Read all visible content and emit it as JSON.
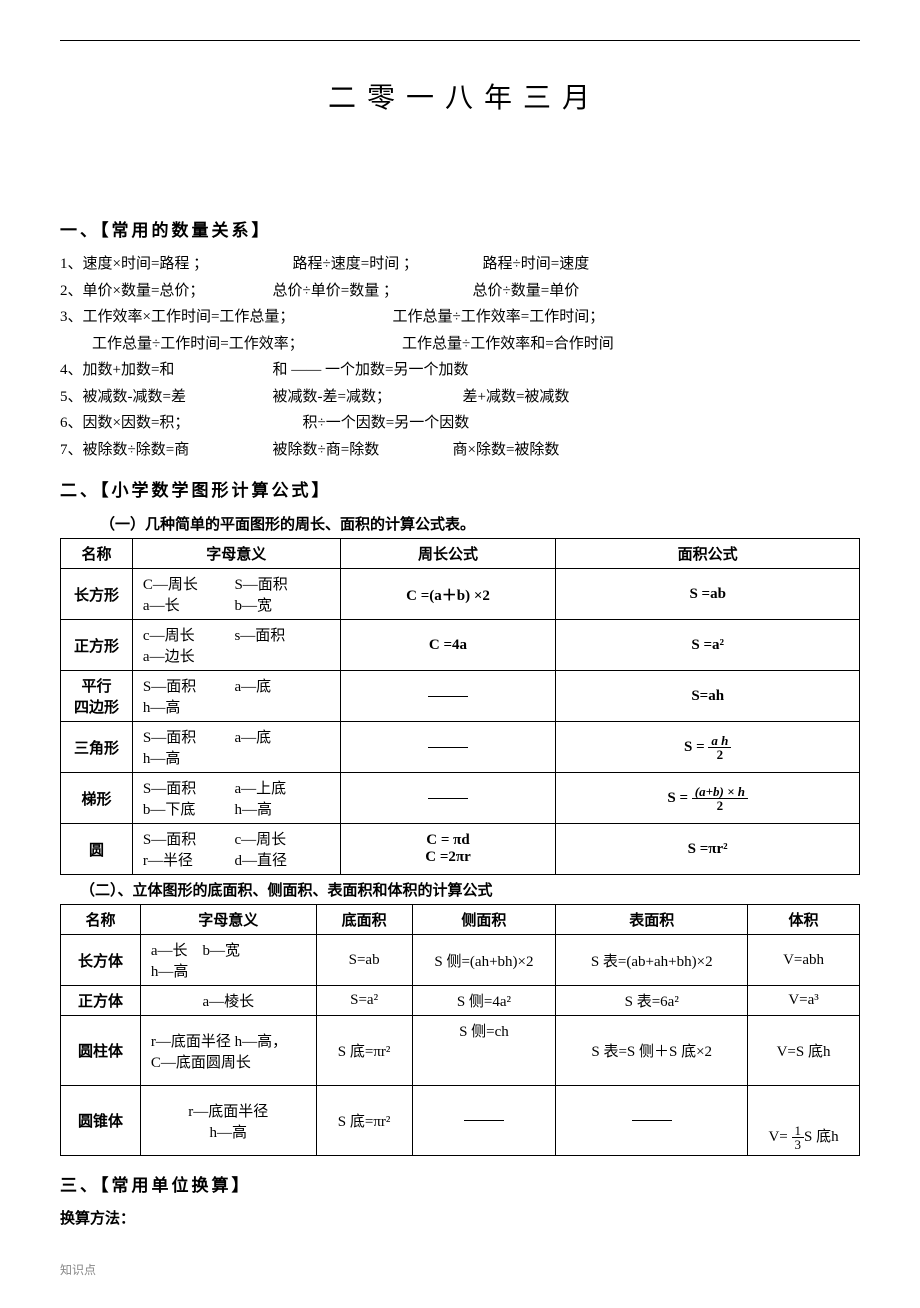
{
  "main_title": "二 零 一 八 年 三 月",
  "section1": {
    "title": "一、【常用的数量关系】",
    "lines": [
      {
        "num": "1、",
        "parts": [
          "速度×时间=路程 ；",
          "路程÷速度=时间 ；",
          "路程÷时间=速度"
        ]
      },
      {
        "num": "2、",
        "parts": [
          "单价×数量=总价；",
          "总价÷单价=数量 ；",
          "总价÷数量=单价"
        ]
      },
      {
        "num": "3、",
        "parts": [
          "工作效率×工作时间=工作总量；",
          "工作总量÷工作效率=工作时间；"
        ]
      },
      {
        "num": "",
        "parts": [
          "工作总量÷工作时间=工作效率；",
          "工作总量÷工作效率和=合作时间"
        ]
      },
      {
        "num": "4、",
        "parts": [
          "加数+加数=和",
          "和 —— 一个加数=另一个加数"
        ]
      },
      {
        "num": "5、",
        "parts": [
          "被减数-减数=差",
          "被减数-差=减数；",
          "差+减数=被减数"
        ]
      },
      {
        "num": "6、",
        "parts": [
          "因数×因数=积；",
          "积÷一个因数=另一个因数"
        ]
      },
      {
        "num": "7、",
        "parts": [
          "被除数÷除数=商",
          "被除数÷商=除数",
          "商×除数=被除数"
        ]
      }
    ]
  },
  "section2": {
    "title": "二、【小学数学图形计算公式】",
    "sub1_title": "（一）几种简单的平面图形的周长、面积的计算公式表。",
    "sub2_title": "（二）、立体图形的底面积、侧面积、表面积和体积的计算公式",
    "table1": {
      "headers": [
        "名称",
        "字母意义",
        "周长公式",
        "面积公式"
      ],
      "rows": [
        {
          "name": "长方形",
          "meaning": [
            [
              "C—周长",
              "S—面积"
            ],
            [
              "a—长",
              "b—宽"
            ]
          ],
          "perimeter": "C =(a＋b) ×2",
          "area": "S  =ab"
        },
        {
          "name": "正方形",
          "meaning": [
            [
              "c—周长",
              "s—面积"
            ],
            [
              "a—边长",
              ""
            ]
          ],
          "perimeter": "C =4a",
          "area": "S  =a²"
        },
        {
          "name": "平行\n四边形",
          "meaning": [
            [
              "S—面积",
              "a—底"
            ],
            [
              "h—高",
              ""
            ]
          ],
          "perimeter": "——",
          "area": "S=ah"
        },
        {
          "name": "三角形",
          "meaning": [
            [
              "S—面积",
              "a—底"
            ],
            [
              "h—高",
              ""
            ]
          ],
          "perimeter": "——",
          "area_frac": {
            "pre": "S  = ",
            "num": "a h",
            "den": "2"
          }
        },
        {
          "name": "梯形",
          "meaning": [
            [
              "S—面积",
              "a—上底"
            ],
            [
              "b—下底",
              "h—高"
            ]
          ],
          "perimeter": "——",
          "area_frac": {
            "pre": "S  = ",
            "num": "(a+b) × h",
            "den": "2"
          }
        },
        {
          "name": "圆",
          "meaning": [
            [
              "S—面积",
              "c—周长"
            ],
            [
              "r—半径",
              "d—直径"
            ]
          ],
          "perimeter": "C = πd\nC =2πr",
          "area": "S  =πr²"
        }
      ]
    },
    "table2": {
      "headers": [
        "名称",
        "字母意义",
        "底面积",
        "侧面积",
        "表面积",
        "体积"
      ],
      "rows": [
        {
          "name": "长方体",
          "meaning": "a—长　b—宽\nh—高",
          "base": "S=ab",
          "side": "S 侧=(ah+bh)×2",
          "surface": "S 表=(ab+ah+bh)×2",
          "volume": "V=abh"
        },
        {
          "name": "正方体",
          "meaning": "a—棱长",
          "base": "S=a²",
          "side": "S 侧=4a²",
          "surface": "S 表=6a²",
          "volume": "V=a³"
        },
        {
          "name": "圆柱体",
          "meaning": "r—底面半径 h—高，\nC—底面圆周长",
          "base": "S 底=πr²",
          "side": "S 侧=ch",
          "surface": "S 表=S 侧＋S 底×2",
          "volume": "V=S 底h"
        },
        {
          "name": "圆锥体",
          "meaning": "r—底面半径\nh—高",
          "base": "S 底=πr²",
          "side": "——",
          "surface": "——",
          "volume_frac": {
            "pre": "V= ",
            "num": "1",
            "den": "3",
            "post": "S 底h"
          }
        }
      ]
    }
  },
  "section3": {
    "title": "三、【常用单位换算】",
    "line1": "换算方法："
  },
  "footer": "知识点"
}
